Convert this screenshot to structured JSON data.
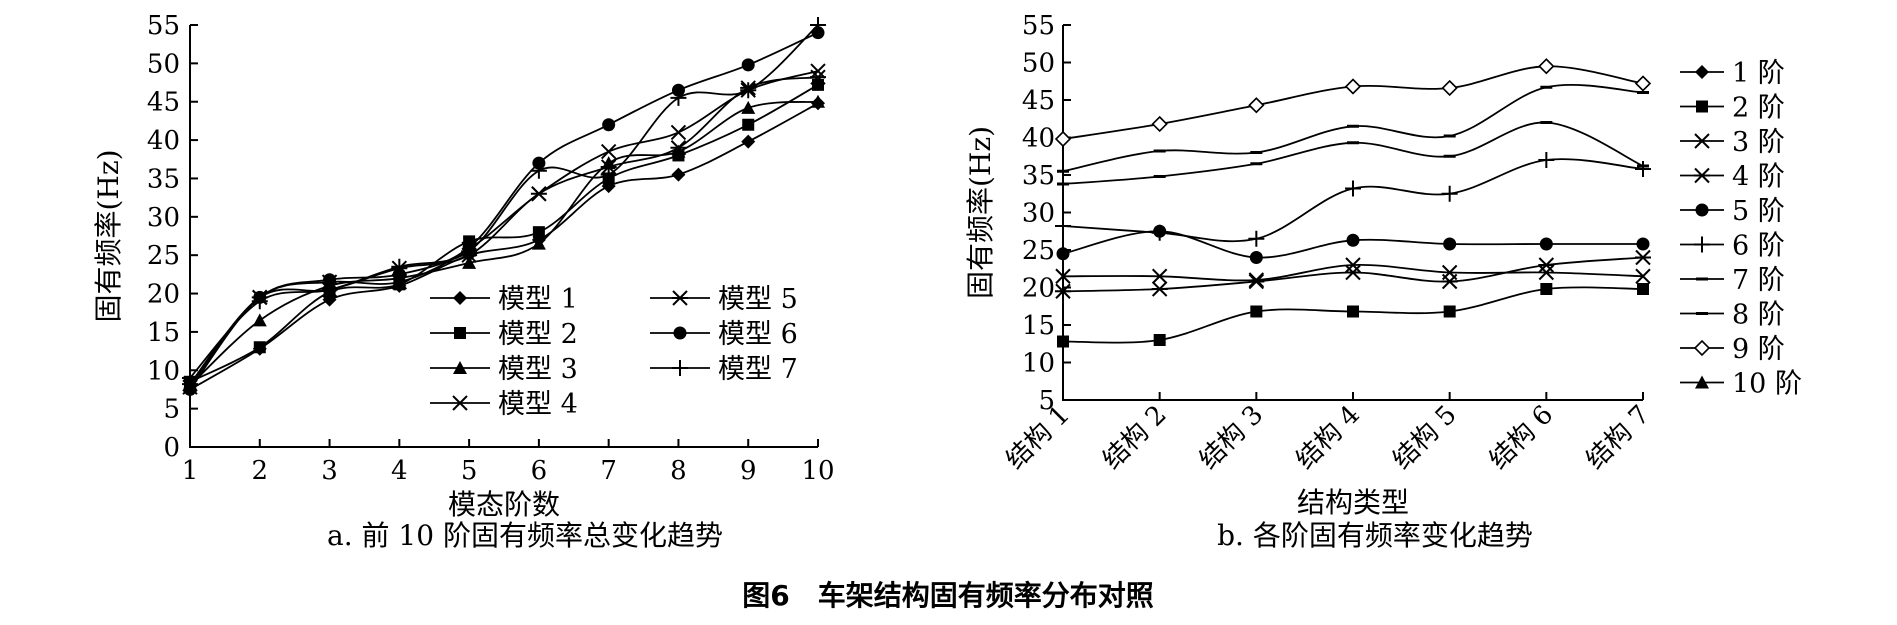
{
  "figure_title": "图6　车架结构固有频率分布对照",
  "chart_data": [
    {
      "type": "line",
      "caption": "a. 前 10 阶固有频率总变化趋势",
      "xlabel": "模态阶数",
      "ylabel": "固有频率(Hz)",
      "xlim": [
        1,
        10
      ],
      "ylim": [
        0,
        55
      ],
      "x": [
        1,
        2,
        3,
        4,
        5,
        6,
        7,
        8,
        9,
        10
      ],
      "x_ticks": [
        1,
        2,
        3,
        4,
        5,
        6,
        7,
        8,
        9,
        10
      ],
      "y_ticks": [
        0,
        5,
        10,
        15,
        20,
        25,
        30,
        35,
        40,
        45,
        50,
        55
      ],
      "grid": false,
      "legend": "center",
      "series": [
        {
          "name": "模型 1",
          "marker": "diamond",
          "values": [
            7.5,
            12.8,
            19.2,
            21.0,
            25.0,
            27.0,
            34.0,
            35.5,
            39.8,
            44.8
          ]
        },
        {
          "name": "模型 2",
          "marker": "square",
          "values": [
            8.5,
            13.0,
            20.2,
            21.2,
            26.8,
            28.0,
            35.0,
            38.0,
            42.0,
            47.2
          ]
        },
        {
          "name": "模型 3",
          "marker": "triangle",
          "values": [
            8.0,
            16.5,
            21.0,
            22.0,
            24.0,
            26.5,
            37.0,
            38.5,
            44.2,
            45.0
          ]
        },
        {
          "name": "模型 4",
          "marker": "x",
          "values": [
            7.8,
            19.5,
            21.5,
            21.5,
            25.8,
            33.0,
            38.5,
            41.0,
            46.5,
            49.0
          ]
        },
        {
          "name": "模型 5",
          "marker": "asterisk",
          "values": [
            8.2,
            19.5,
            20.5,
            23.3,
            25.0,
            33.0,
            36.5,
            39.0,
            46.8,
            48.2
          ]
        },
        {
          "name": "模型 6",
          "marker": "circle",
          "values": [
            7.5,
            19.5,
            21.8,
            22.5,
            26.0,
            37.0,
            42.0,
            46.5,
            49.8,
            54.0
          ]
        },
        {
          "name": "模型 7",
          "marker": "plus",
          "values": [
            9.0,
            19.0,
            20.5,
            23.5,
            25.5,
            36.0,
            35.5,
            45.5,
            46.5,
            55.0
          ]
        }
      ]
    },
    {
      "type": "line",
      "caption": "b. 各阶固有频率变化趋势",
      "xlabel": "结构类型",
      "ylabel": "固有频率(Hz)",
      "ylim": [
        5,
        55
      ],
      "categories": [
        "结构 1",
        "结构 2",
        "结构 3",
        "结构 4",
        "结构 5",
        "结构 6",
        "结构 7"
      ],
      "y_ticks": [
        5,
        10,
        15,
        20,
        25,
        30,
        35,
        40,
        45,
        50,
        55
      ],
      "grid": false,
      "legend": "right",
      "series": [
        {
          "name": "1 阶",
          "marker": "diamond",
          "values": [
            null,
            null,
            null,
            null,
            null,
            null,
            null
          ]
        },
        {
          "name": "2 阶",
          "marker": "square",
          "values": [
            12.8,
            13.0,
            16.8,
            16.8,
            16.8,
            19.8,
            19.8
          ]
        },
        {
          "name": "3 阶",
          "marker": "x",
          "values": [
            21.5,
            21.5,
            21.0,
            23.0,
            22.0,
            22.0,
            21.5
          ]
        },
        {
          "name": "4 阶",
          "marker": "asterisk",
          "values": [
            19.5,
            19.8,
            20.8,
            22.0,
            20.8,
            23.0,
            24.0
          ]
        },
        {
          "name": "5 阶",
          "marker": "circle",
          "values": [
            24.5,
            27.5,
            24.0,
            26.3,
            25.8,
            25.8,
            25.8
          ]
        },
        {
          "name": "6 阶",
          "marker": "plus",
          "values": [
            28.2,
            27.3,
            26.5,
            33.2,
            32.5,
            37.0,
            35.8
          ]
        },
        {
          "name": "7 阶",
          "marker": "dash",
          "values": [
            33.8,
            34.8,
            36.5,
            39.3,
            37.5,
            42.0,
            36.2
          ]
        },
        {
          "name": "8 阶",
          "marker": "dash",
          "values": [
            35.5,
            38.2,
            38.0,
            41.5,
            40.2,
            46.7,
            46.0
          ]
        },
        {
          "name": "9 阶",
          "marker": "open-diamond",
          "values": [
            39.8,
            41.8,
            44.3,
            46.8,
            46.6,
            49.5,
            47.2
          ]
        },
        {
          "name": "10 阶",
          "marker": "triangle",
          "values": [
            null,
            null,
            null,
            null,
            null,
            null,
            null
          ]
        }
      ]
    }
  ]
}
